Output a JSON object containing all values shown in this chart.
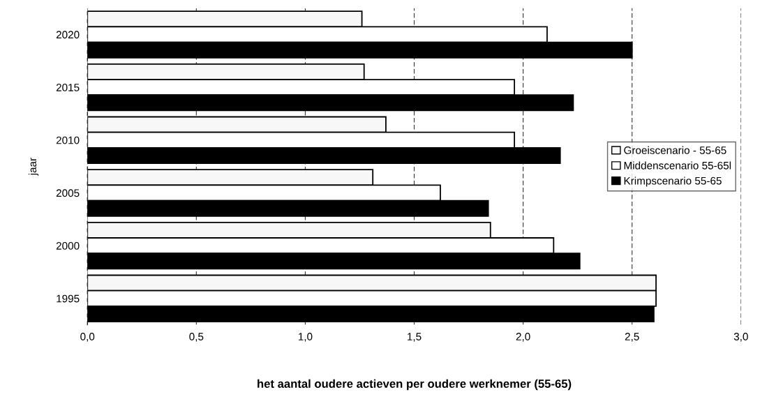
{
  "chart_data": {
    "type": "bar",
    "orientation": "horizontal",
    "xlabel": "het aantal oudere actieven per oudere werknemer (55-65)",
    "ylabel": "jaar",
    "categories": [
      "2020",
      "2015",
      "2010",
      "2005",
      "2000",
      "1995"
    ],
    "series": [
      {
        "name": "Groeiscenario - 55-65",
        "color": "#f7f7f7",
        "values": [
          1.26,
          1.27,
          1.37,
          1.31,
          1.85,
          2.61
        ]
      },
      {
        "name": "Middenscenario 55-65l",
        "color": "#ffffff",
        "values": [
          2.11,
          1.96,
          1.96,
          1.62,
          2.14,
          2.61
        ]
      },
      {
        "name": "Krimpscenario 55-65",
        "color": "#000000",
        "values": [
          2.5,
          2.23,
          2.17,
          1.84,
          2.26,
          2.6
        ]
      }
    ],
    "xlim": [
      0,
      3.0
    ],
    "xticks": [
      {
        "value": 0,
        "label": "0,0"
      },
      {
        "value": 0.5,
        "label": "0,5"
      },
      {
        "value": 1.0,
        "label": "1,0"
      },
      {
        "value": 1.5,
        "label": "1,5"
      },
      {
        "value": 2.0,
        "label": "2,0"
      },
      {
        "value": 2.5,
        "label": "2,5"
      },
      {
        "value": 3.0,
        "label": "3,0"
      }
    ],
    "grid": "x",
    "legend": "right"
  }
}
